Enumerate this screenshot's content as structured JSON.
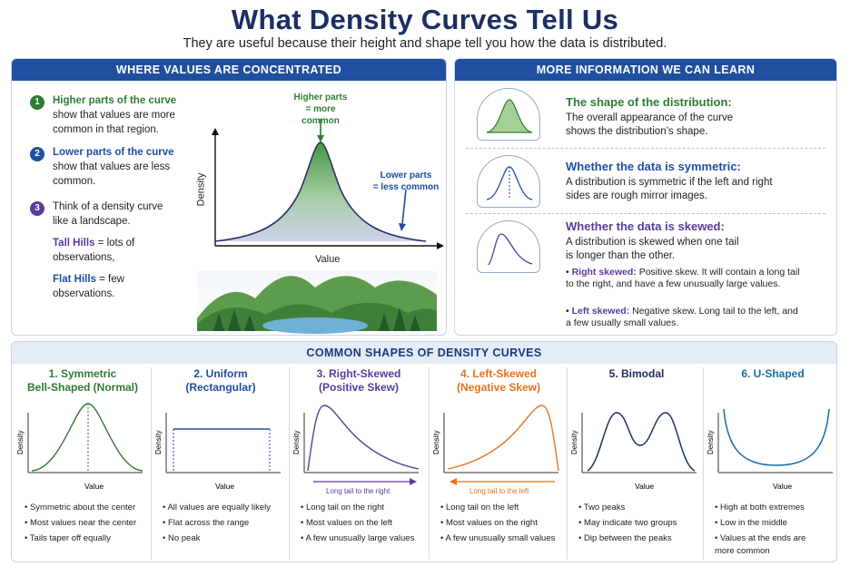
{
  "header": {
    "title": "What Density Curves Tell Us",
    "subtitle": "They are useful because their height and shape tell you how the data is distributed."
  },
  "left_panel": {
    "heading": "WHERE VALUES ARE CONCENTRATED",
    "points": [
      {
        "num": "1",
        "bold": "Higher parts of the curve",
        "text": "show that values are more common in that region."
      },
      {
        "num": "2",
        "bold": "Lower parts of the curve",
        "text": "show that values are less common."
      },
      {
        "num": "3",
        "bold": "",
        "text": "Think of a density curve like a landscape."
      }
    ],
    "tall_hills_bold": "Tall Hills",
    "tall_hills_text": "= lots of observations,",
    "flat_hills_bold": "Flat Hills",
    "flat_hills_text": "= few observations.",
    "graph": {
      "higher_label_1": "Higher parts",
      "higher_label_2": "= more common",
      "lower_label_1": "Lower parts",
      "lower_label_2": "= less common",
      "ylabel": "Density",
      "xlabel": "Value"
    }
  },
  "right_panel": {
    "heading": "MORE INFORMATION WE CAN LEARN",
    "items": [
      {
        "title": "The shape of the distribution:",
        "text": "The overall appearance of the curve shows the distribution’s shape."
      },
      {
        "title": "Whether the data is symmetric:",
        "text": "A distribution is symmetric if the left and right sides are rough mirror images."
      },
      {
        "title": "Whether the data is skewed:",
        "text": "A distribution is skewed when one tail is longer than the other."
      }
    ],
    "bullets": [
      {
        "bold": "Right skewed:",
        "text": "Positive skew. It will contain a long tail to the right, and have a few unusually large values."
      },
      {
        "bold": "Left skewed:",
        "text": "Negative skew. Long tail to the left, and a few usually small values."
      }
    ]
  },
  "bottom_panel": {
    "heading": "COMMON SHAPES OF DENSITY CURVES",
    "ylabel": "Density",
    "xlabel": "Value",
    "shapes": [
      {
        "title_1": "1. Symmetric",
        "title_2": "Bell-Shaped (Normal)",
        "color": "#2e7d32",
        "tail_label": "",
        "bullets": [
          "Symmetric about the center",
          "Most values near the center",
          "Tails taper off equally"
        ]
      },
      {
        "title_1": "2. Uniform",
        "title_2": "(Rectangular)",
        "color": "#1e4fa0",
        "tail_label": "",
        "bullets": [
          "All values are equally likely",
          "Flat across the range",
          "No peak"
        ]
      },
      {
        "title_1": "3. Right-Skewed",
        "title_2": "(Positive Skew)",
        "color": "#5b3b9b",
        "tail_label": "Long tail to the right",
        "bullets": [
          "Long tail on the right",
          "Most values on the left",
          "A few unusually large values"
        ]
      },
      {
        "title_1": "4. Left-Skewed",
        "title_2": "(Negative Skew)",
        "color": "#e8711c",
        "tail_label": "Long tail to the left",
        "bullets": [
          "Long tail on the left",
          "Most values on the right",
          "A few unusually small values"
        ]
      },
      {
        "title_1": "5. Bimodal",
        "title_2": "",
        "color": "#1b2f63",
        "tail_label": "",
        "bullets": [
          "Two peaks",
          "May indicate two groups",
          "Dip between the peaks"
        ]
      },
      {
        "title_1": "6. U-Shaped",
        "title_2": "",
        "color": "#1a6fa0",
        "tail_label": "",
        "bullets": [
          "High at both extremes",
          "Low in the middle",
          "Values at the ends are more common"
        ]
      }
    ]
  }
}
